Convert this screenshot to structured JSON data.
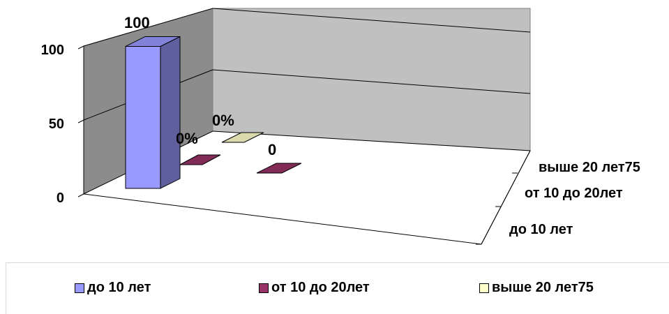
{
  "chart_data": {
    "type": "bar",
    "categories": [
      "до 10 лет",
      "от 10 до 20лет",
      "выше 20 лет75"
    ],
    "series": [
      {
        "name": "до 10 лет",
        "values": [
          100,
          null,
          null
        ],
        "color": "#9999ff"
      },
      {
        "name": "от 10 до 20лет",
        "values": [
          0,
          0,
          null
        ],
        "color": "#993366"
      },
      {
        "name": "выше 20 лет75",
        "values": [
          null,
          0,
          null
        ],
        "color": "#ffffcc"
      }
    ],
    "data_labels": [
      "100",
      "0%",
      "0",
      "0%"
    ],
    "y_ticks": [
      "0",
      "50",
      "100"
    ],
    "ylim": [
      0,
      100
    ],
    "title": "",
    "xlabel": "",
    "ylabel": "",
    "grid": true,
    "legend_position": "bottom",
    "three_d": true
  },
  "legend": {
    "items": [
      {
        "label": "до 10 лет",
        "color": "#9999ff"
      },
      {
        "label": "от 10 до 20лет",
        "color": "#993366"
      },
      {
        "label": "выше 20 лет75",
        "color": "#ffffcc"
      }
    ]
  }
}
